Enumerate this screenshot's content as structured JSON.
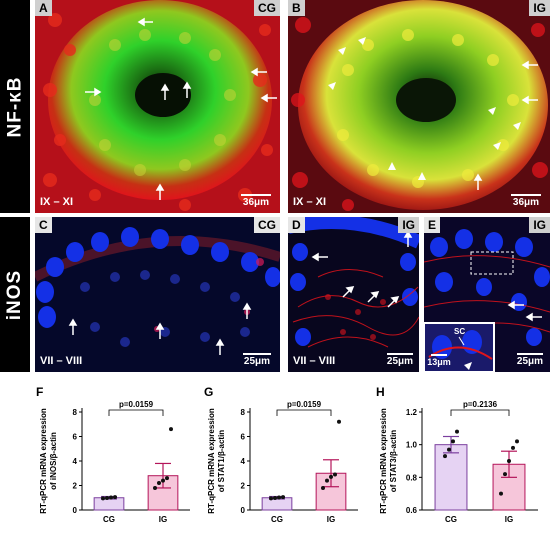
{
  "rows": {
    "nfkb": "NF-κB",
    "inos": "iNOS"
  },
  "panels": {
    "A": {
      "letter": "A",
      "group": "CG",
      "stage": "IX – XI",
      "scale": "36μm"
    },
    "B": {
      "letter": "B",
      "group": "IG",
      "stage": "IX – XI",
      "scale": "36μm"
    },
    "C": {
      "letter": "C",
      "group": "CG",
      "stage": "VII – VIII",
      "scale": "25μm"
    },
    "D": {
      "letter": "D",
      "group": "IG",
      "stage": "VII – VIII",
      "scale": "25μm"
    },
    "E": {
      "letter": "E",
      "group": "IG",
      "stage": "",
      "scale": "25μm",
      "inset_scale": "13μm",
      "inset_label": "SC"
    }
  },
  "colors": {
    "red": "#e0141b",
    "green": "#2fd12a",
    "blue": "#1430e6",
    "yellow": "#d9e23a",
    "cg_bar": "#e6d3f3",
    "cg_edge": "#7b3f9e",
    "ig_bar": "#f6c6da",
    "ig_edge": "#b4155a"
  },
  "chart_data": [
    {
      "panel": "F",
      "type": "bar",
      "categories": [
        "CG",
        "IG"
      ],
      "values": [
        1.0,
        2.8
      ],
      "errors": [
        0.1,
        1.0
      ],
      "points": [
        [
          0.95,
          0.98,
          1.02,
          1.05
        ],
        [
          1.8,
          2.2,
          2.4,
          2.6,
          6.6
        ]
      ],
      "pvalue": "p=0.0159",
      "ylabel": "RT-qPCR mRNA expression of iNOS/β-actin",
      "ylim": [
        0,
        8
      ],
      "yticks": [
        0,
        2,
        4,
        6,
        8
      ]
    },
    {
      "panel": "G",
      "type": "bar",
      "categories": [
        "CG",
        "IG"
      ],
      "values": [
        1.0,
        3.0
      ],
      "errors": [
        0.1,
        1.1
      ],
      "points": [
        [
          0.95,
          0.98,
          1.02,
          1.05
        ],
        [
          1.8,
          2.4,
          2.7,
          2.9,
          7.2
        ]
      ],
      "pvalue": "p=0.0159",
      "ylabel": "RT-qPCR mRNA expression of STAT1/β-actin",
      "ylim": [
        0,
        8
      ],
      "yticks": [
        0,
        2,
        4,
        6,
        8
      ]
    },
    {
      "panel": "H",
      "type": "bar",
      "categories": [
        "CG",
        "IG"
      ],
      "values": [
        1.0,
        0.88
      ],
      "errors": [
        0.05,
        0.08
      ],
      "points": [
        [
          0.93,
          0.97,
          1.02,
          1.08
        ],
        [
          0.7,
          0.82,
          0.9,
          0.98,
          1.02
        ]
      ],
      "pvalue": "p=0.2136",
      "ylabel": "RT-qPCR mRNA expression of STAT3/β-actin",
      "ylim": [
        0.6,
        1.2
      ],
      "yticks": [
        0.6,
        0.8,
        1.0,
        1.2
      ]
    }
  ]
}
